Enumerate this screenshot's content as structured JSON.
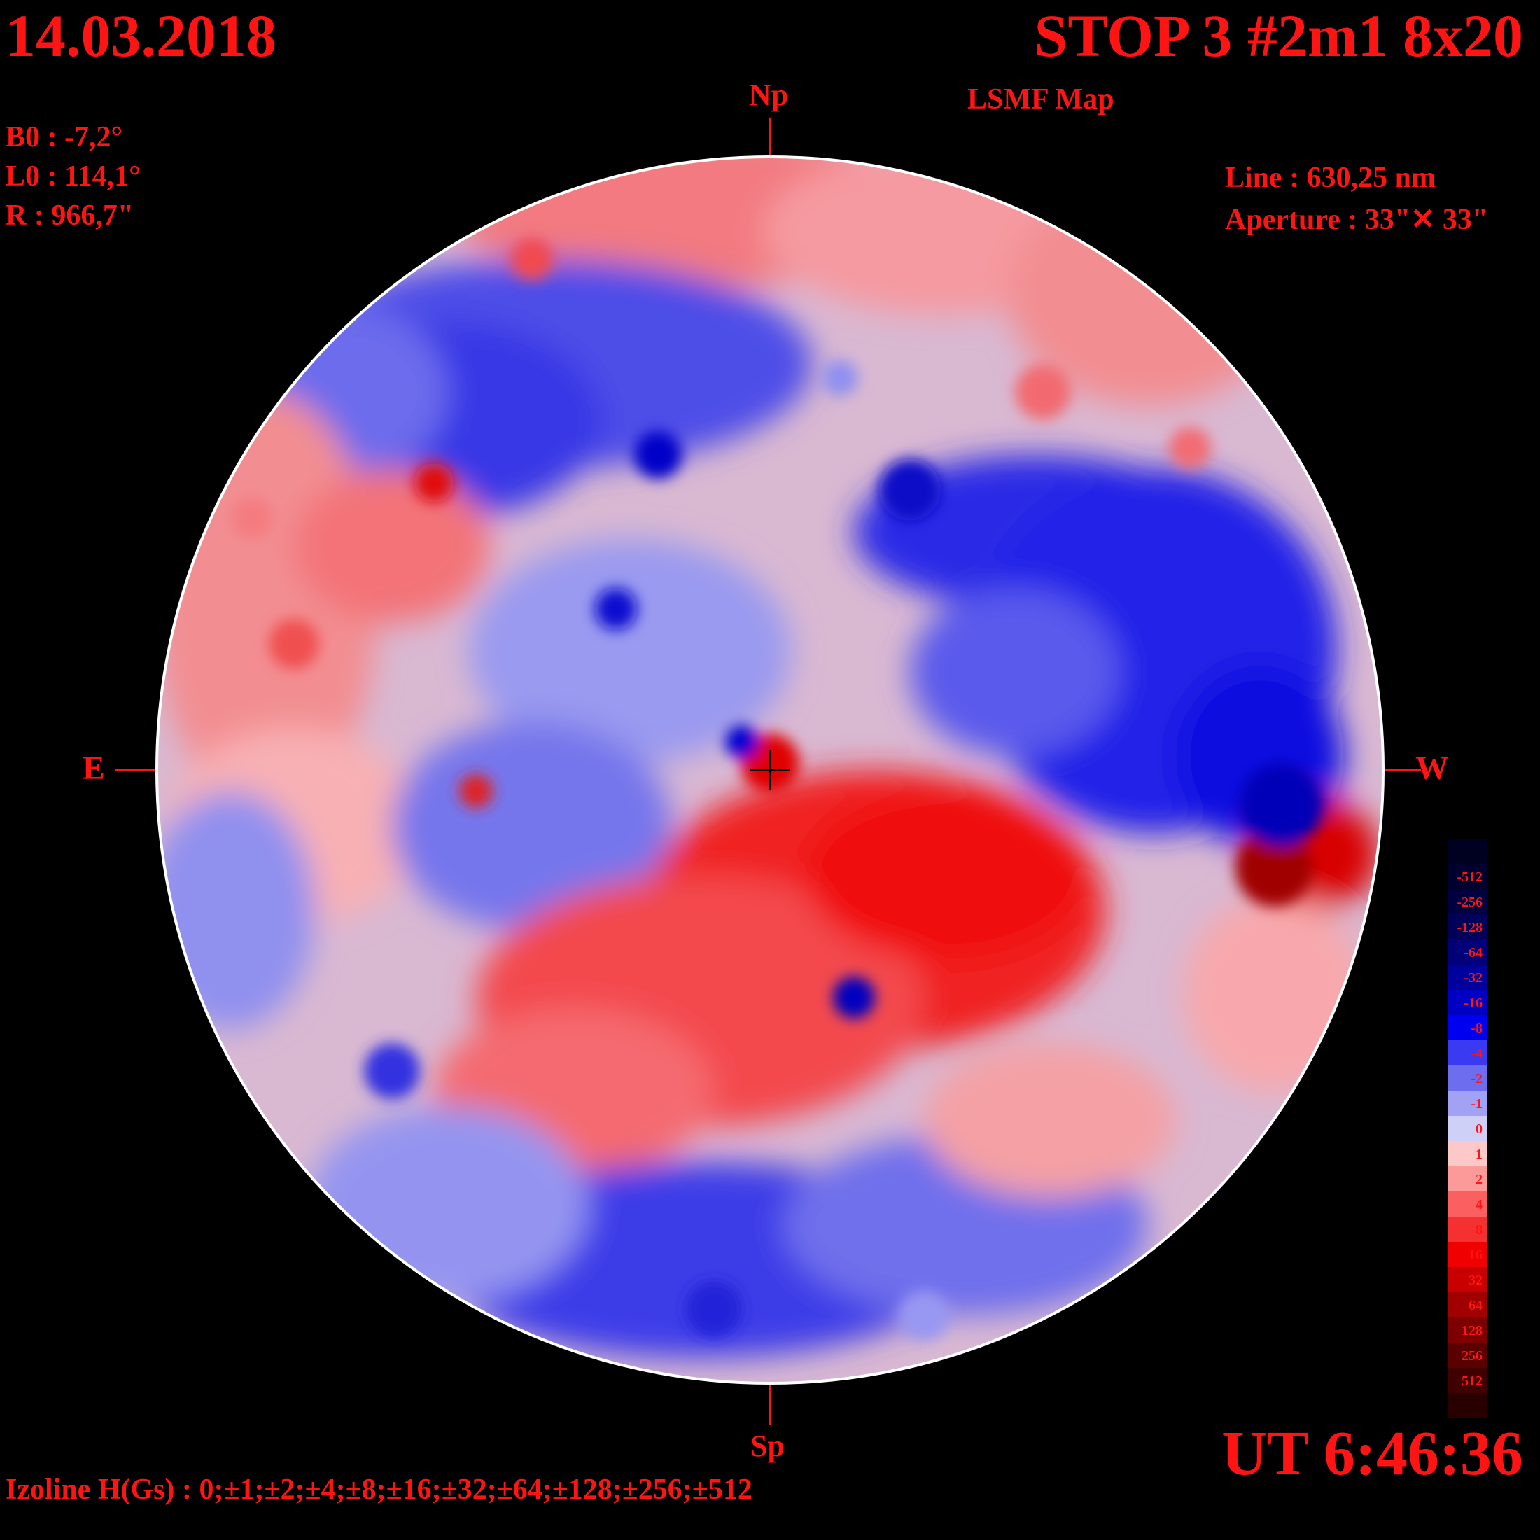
{
  "header": {
    "date": "14.03.2018",
    "title": "STOP 3 #2m1 8x20",
    "subtitle": "LSMF  Map"
  },
  "params": {
    "b0": "B0 : -7,2°",
    "l0": "L0 : 114,1°",
    "r": "R  : 966,7\""
  },
  "instrument": {
    "line": "Line :  630,25 nm",
    "aperture": "Aperture : 33\"✕ 33\""
  },
  "directions": {
    "north": "Np",
    "south": "Sp",
    "east": "E",
    "west": "W"
  },
  "time": "UT 6:46:36",
  "izoline": "Izoline H(Gs) : 0;±1;±2;±4;±8;±16;±32;±64;±128;±256;±512",
  "colors": {
    "text": "#ff1414",
    "background": "#000000",
    "contour": "#ffffff"
  },
  "legend": [
    {
      "label": "",
      "color": "#000020"
    },
    {
      "label": "-512",
      "color": "#00002e"
    },
    {
      "label": "-256",
      "color": "#00003f"
    },
    {
      "label": "-128",
      "color": "#000058"
    },
    {
      "label": "-64",
      "color": "#000078"
    },
    {
      "label": "-32",
      "color": "#00009c"
    },
    {
      "label": "-16",
      "color": "#0000c4"
    },
    {
      "label": "-8",
      "color": "#0000f0"
    },
    {
      "label": "-4",
      "color": "#3a3af2"
    },
    {
      "label": "-2",
      "color": "#6d6df0"
    },
    {
      "label": "-1",
      "color": "#a2a2f4"
    },
    {
      "label": "0",
      "color": "#cfd0f7"
    },
    {
      "label": "1",
      "color": "#fdc8c8"
    },
    {
      "label": "2",
      "color": "#fc9a9a"
    },
    {
      "label": "4",
      "color": "#fa6060"
    },
    {
      "label": "8",
      "color": "#f53030"
    },
    {
      "label": "16",
      "color": "#f00000"
    },
    {
      "label": "32",
      "color": "#c80000"
    },
    {
      "label": "64",
      "color": "#a00000"
    },
    {
      "label": "128",
      "color": "#7c0000"
    },
    {
      "label": "256",
      "color": "#5a0000"
    },
    {
      "label": "512",
      "color": "#3e0000"
    },
    {
      "label": "",
      "color": "#280000"
    }
  ]
}
